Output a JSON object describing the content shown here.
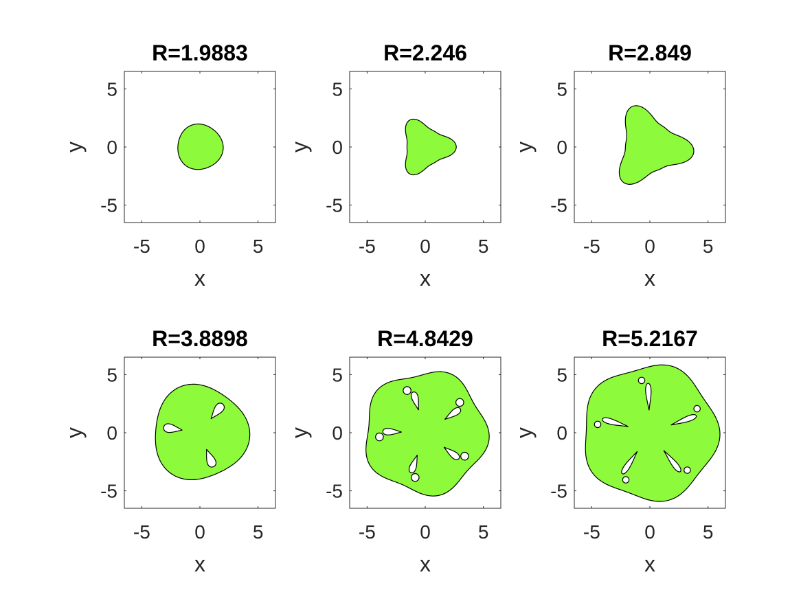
{
  "colors": {
    "fill": "#8dfa3b",
    "outline": "#000000",
    "axes": "#262626"
  },
  "chart_data": [
    {
      "type": "area",
      "title": "R=1.9883",
      "xlabel": "x",
      "ylabel": "y",
      "xlim": [
        -6.5,
        6.5
      ],
      "ylim": [
        -6.5,
        6.5
      ],
      "xticks": [
        -5,
        0,
        5
      ],
      "yticks": [
        -5,
        0,
        5
      ],
      "xtick_labels": [
        "-5",
        "0",
        "5"
      ],
      "ytick_labels": [
        "-5",
        "0",
        "5"
      ],
      "grid": false
    },
    {
      "type": "area",
      "title": "R=2.246",
      "xlabel": "x",
      "ylabel": "y",
      "xlim": [
        -6.5,
        6.5
      ],
      "ylim": [
        -6.5,
        6.5
      ],
      "xticks": [
        -5,
        0,
        5
      ],
      "yticks": [
        -5,
        0,
        5
      ],
      "xtick_labels": [
        "-5",
        "0",
        "5"
      ],
      "ytick_labels": [
        "-5",
        "0",
        "5"
      ],
      "grid": false
    },
    {
      "type": "area",
      "title": "R=2.849",
      "xlabel": "x",
      "ylabel": "y",
      "xlim": [
        -6.5,
        6.5
      ],
      "ylim": [
        -6.5,
        6.5
      ],
      "xticks": [
        -5,
        0,
        5
      ],
      "yticks": [
        -5,
        0,
        5
      ],
      "xtick_labels": [
        "-5",
        "0",
        "5"
      ],
      "ytick_labels": [
        "-5",
        "0",
        "5"
      ],
      "grid": false
    },
    {
      "type": "area",
      "title": "R=3.8898",
      "xlabel": "x",
      "ylabel": "y",
      "xlim": [
        -6.5,
        6.5
      ],
      "ylim": [
        -6.5,
        6.5
      ],
      "xticks": [
        -5,
        0,
        5
      ],
      "yticks": [
        -5,
        0,
        5
      ],
      "xtick_labels": [
        "-5",
        "0",
        "5"
      ],
      "ytick_labels": [
        "-5",
        "0",
        "5"
      ],
      "grid": false
    },
    {
      "type": "area",
      "title": "R=4.8429",
      "xlabel": "x",
      "ylabel": "y",
      "xlim": [
        -6.5,
        6.5
      ],
      "ylim": [
        -6.5,
        6.5
      ],
      "xticks": [
        -5,
        0,
        5
      ],
      "yticks": [
        -5,
        0,
        5
      ],
      "xtick_labels": [
        "-5",
        "0",
        "5"
      ],
      "ytick_labels": [
        "-5",
        "0",
        "5"
      ],
      "grid": false
    },
    {
      "type": "area",
      "title": "R=5.2167",
      "xlabel": "x",
      "ylabel": "y",
      "xlim": [
        -6.5,
        6.5
      ],
      "ylim": [
        -6.5,
        6.5
      ],
      "xticks": [
        -5,
        0,
        5
      ],
      "yticks": [
        -5,
        0,
        5
      ],
      "xtick_labels": [
        "-5",
        "0",
        "5"
      ],
      "ytick_labels": [
        "-5",
        "0",
        "5"
      ],
      "grid": false
    }
  ]
}
